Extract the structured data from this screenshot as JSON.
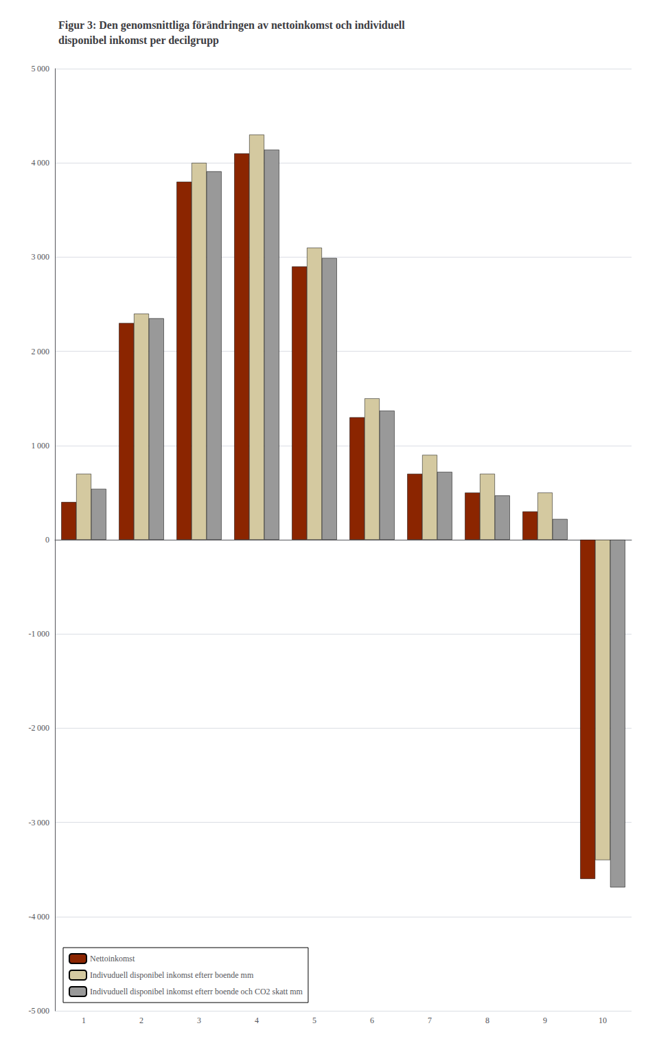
{
  "chart_data": {
    "type": "bar",
    "title": "Figur 3: Den genomsnittliga förändringen av nettoinkomst och individuell\ndisponibel inkomst per decilgrupp",
    "categories": [
      "1",
      "2",
      "3",
      "4",
      "5",
      "6",
      "7",
      "8",
      "9",
      "10"
    ],
    "series": [
      {
        "name": "Nettoinkomst",
        "color": "#8B2500",
        "values": [
          400,
          2300,
          3800,
          4100,
          2900,
          1300,
          700,
          500,
          300,
          -3600
        ]
      },
      {
        "name": "Indivuduell disponibel inkomst efterr boende mm",
        "color": "#D4C9A0",
        "values": [
          700,
          2400,
          4000,
          4300,
          3100,
          1500,
          900,
          700,
          500,
          -3400
        ]
      },
      {
        "name": "Indivuduell disponibel inkomst efterr boende och CO2 skatt mm",
        "color": "#999999",
        "values": [
          540,
          2350,
          3910,
          4140,
          2990,
          1370,
          720,
          470,
          220,
          -3690
        ]
      }
    ],
    "ylim": [
      -5000,
      5000
    ],
    "yticks": [
      {
        "value": -5000,
        "label": "-5 000"
      },
      {
        "value": -4000,
        "label": "-4 000"
      },
      {
        "value": -3000,
        "label": "-3 000"
      },
      {
        "value": -2000,
        "label": "-2 000"
      },
      {
        "value": -1000,
        "label": "-1 000"
      },
      0,
      {
        "value": 1000,
        "label": "1 000"
      },
      {
        "value": 2000,
        "label": "2 000"
      },
      {
        "value": 3000,
        "label": "3 000"
      },
      {
        "value": 4000,
        "label": "4 000"
      },
      {
        "value": 5000,
        "label": "5 000"
      }
    ],
    "grid": true,
    "legend": "lower left"
  }
}
